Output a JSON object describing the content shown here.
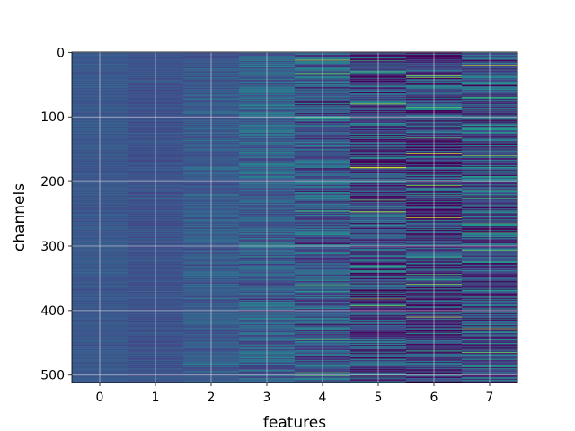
{
  "chart_data": {
    "type": "heatmap",
    "title": "",
    "xlabel": "features",
    "ylabel": "channels",
    "x_categories": [
      "0",
      "1",
      "2",
      "3",
      "4",
      "5",
      "6",
      "7"
    ],
    "y_ticks": [
      0,
      100,
      200,
      300,
      400,
      500
    ],
    "y_tick_labels": [
      "0",
      "100",
      "200",
      "300",
      "400",
      "500"
    ],
    "xlim": [
      -0.5,
      7.5
    ],
    "ylim": [
      511.5,
      -0.5
    ],
    "rows": 512,
    "colormap": "viridis",
    "grid": true,
    "column_variability": [
      0.06,
      0.08,
      0.14,
      0.24,
      0.34,
      0.46,
      0.52,
      0.5
    ],
    "column_base_level": [
      0.27,
      0.25,
      0.28,
      0.3,
      0.28,
      0.22,
      0.2,
      0.24
    ],
    "highlights": [
      {
        "feature": 4,
        "channel": 12,
        "value": 0.88
      },
      {
        "feature": 5,
        "channel": 178,
        "value": 0.95
      },
      {
        "feature": 5,
        "channel": 247,
        "value": 0.92
      },
      {
        "feature": 6,
        "channel": 410,
        "value": 0.88
      },
      {
        "feature": 7,
        "channel": 20,
        "value": 0.9
      },
      {
        "feature": 7,
        "channel": 160,
        "value": 0.8
      }
    ]
  }
}
